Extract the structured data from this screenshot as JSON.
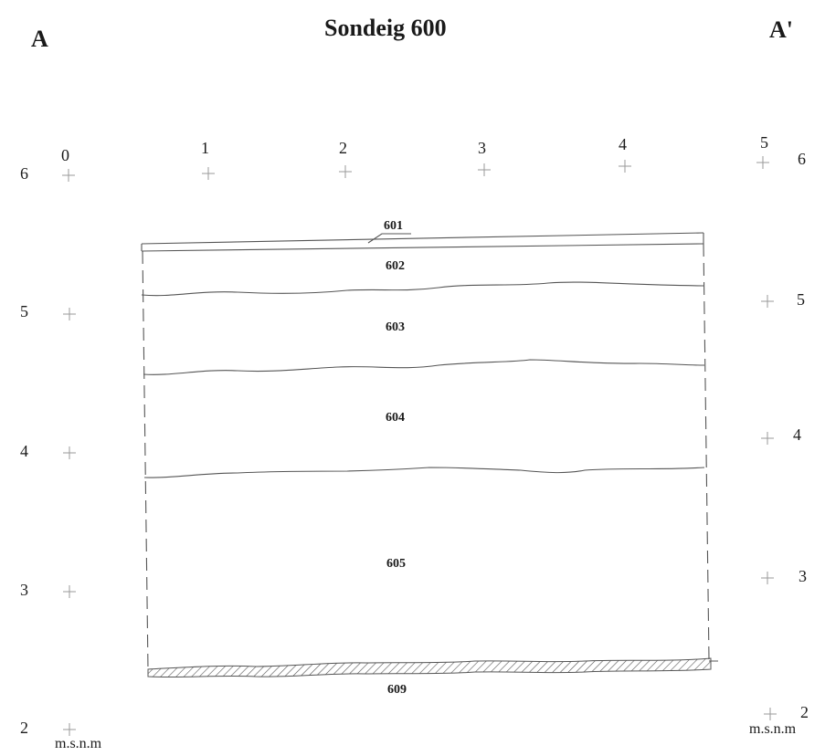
{
  "title": "Sondeig 600",
  "section_ends": {
    "start": "A",
    "end": "A'"
  },
  "horizontal_scale": [
    "0",
    "1",
    "2",
    "3",
    "4",
    "5"
  ],
  "vertical_scale_left": [
    "6",
    "5",
    "4",
    "3",
    "2"
  ],
  "vertical_scale_right": [
    "6",
    "5",
    "4",
    "3",
    "2"
  ],
  "unit_label": "m.s.n.m",
  "layers": [
    "601",
    "602",
    "603",
    "604",
    "605",
    "609"
  ],
  "colors": {
    "ink": "#1a1a1a",
    "line": "#555555",
    "grid_mark": "#9a9a9a"
  }
}
